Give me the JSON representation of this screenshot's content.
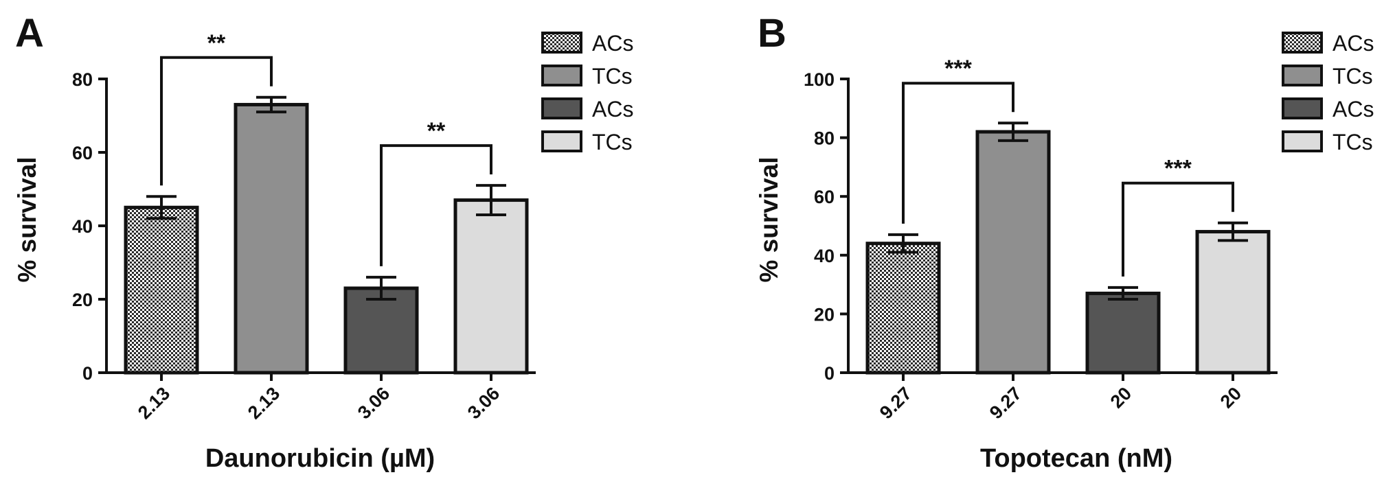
{
  "chart_data": [
    {
      "type": "bar",
      "panel": "A",
      "xlabel": "Daunorubicin (µM)",
      "ylabel": "% survival",
      "ylim": [
        0,
        80
      ],
      "yticks": [
        0,
        20,
        40,
        60,
        80
      ],
      "categories": [
        "2.13",
        "2.13",
        "3.06",
        "3.06"
      ],
      "values": [
        45,
        73,
        23,
        47
      ],
      "errors": [
        3,
        2,
        3,
        4
      ],
      "series_labels": [
        "ACs",
        "TCs",
        "ACs",
        "TCs"
      ],
      "fills": [
        "#cfcfcf",
        "#8f8f8f",
        "#555555",
        "#dcdcdc"
      ],
      "patterns": [
        "checker",
        "solid",
        "solid",
        "solid"
      ],
      "significance": [
        {
          "bars": [
            0,
            1
          ],
          "label": "**"
        },
        {
          "bars": [
            2,
            3
          ],
          "label": "**"
        }
      ],
      "legend": {
        "position": "top-right",
        "entries": [
          "ACs",
          "TCs",
          "ACs",
          "TCs"
        ]
      }
    },
    {
      "type": "bar",
      "panel": "B",
      "xlabel": "Topotecan (nM)",
      "ylabel": "% survival",
      "ylim": [
        0,
        100
      ],
      "yticks": [
        0,
        20,
        40,
        60,
        80,
        100
      ],
      "categories": [
        "9.27",
        "9.27",
        "20",
        "20"
      ],
      "values": [
        44,
        82,
        27,
        48
      ],
      "errors": [
        3,
        3,
        2,
        3
      ],
      "series_labels": [
        "ACs",
        "TCs",
        "ACs",
        "TCs"
      ],
      "fills": [
        "#cfcfcf",
        "#8f8f8f",
        "#555555",
        "#dcdcdc"
      ],
      "patterns": [
        "checker",
        "solid",
        "solid",
        "solid"
      ],
      "significance": [
        {
          "bars": [
            0,
            1
          ],
          "label": "***"
        },
        {
          "bars": [
            2,
            3
          ],
          "label": "***"
        }
      ],
      "legend": {
        "position": "top-right",
        "entries": [
          "ACs",
          "TCs",
          "ACs",
          "TCs"
        ]
      }
    }
  ]
}
